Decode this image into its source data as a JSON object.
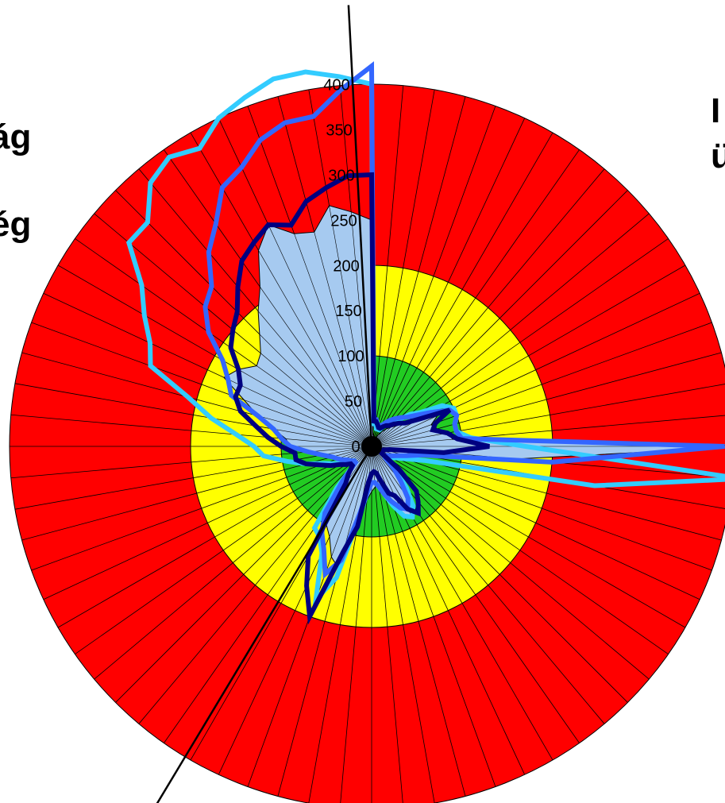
{
  "side_text": {
    "left_1": "ág",
    "left_2": "ég",
    "right_1": "I",
    "right_2": "ü"
  },
  "chart_data": {
    "type": "radar",
    "title": "",
    "r_range": [
      0,
      400
    ],
    "r_ticks": [
      "0",
      "50",
      "100",
      "150",
      "200",
      "250",
      "300",
      "350",
      "400"
    ],
    "r_tick_values": [
      0,
      50,
      100,
      150,
      200,
      250,
      300,
      350,
      400
    ],
    "num_sectors": 72,
    "zones": [
      {
        "name": "green",
        "from": 0,
        "to": 100,
        "color": "#22cc22"
      },
      {
        "name": "yellow",
        "from": 100,
        "to": 200,
        "color": "#ffff00"
      },
      {
        "name": "red",
        "from": 200,
        "to": 400,
        "color": "#ff0000"
      }
    ],
    "axis_angles_deg": [
      -3,
      211
    ],
    "series": [
      {
        "style": "area",
        "color": "#a6caf0",
        "values": [
          250,
          15,
          12,
          10,
          10,
          10,
          15,
          20,
          25,
          30,
          35,
          45,
          55,
          80,
          70,
          75,
          85,
          90,
          420,
          160,
          60,
          35,
          25,
          20,
          18,
          15,
          20,
          40,
          60,
          85,
          90,
          85,
          70,
          55,
          45,
          45,
          50,
          60,
          80,
          140,
          130,
          110,
          100,
          70,
          35,
          28,
          25,
          28,
          30,
          35,
          40,
          45,
          55,
          70,
          90,
          95,
          110,
          130,
          150,
          180,
          170,
          155,
          160,
          175,
          195,
          215,
          250,
          270,
          250,
          245,
          270,
          260
        ]
      },
      {
        "style": "line",
        "color": "#33ccff",
        "values": [
          400,
          25,
          25,
          20,
          20,
          20,
          25,
          30,
          35,
          40,
          55,
          65,
          90,
          100,
          100,
          95,
          95,
          110,
          170,
          410,
          250,
          60,
          40,
          30,
          25,
          20,
          20,
          40,
          60,
          80,
          90,
          85,
          70,
          55,
          45,
          40,
          40,
          50,
          80,
          150,
          180,
          130,
          115,
          110,
          60,
          25,
          25,
          28,
          35,
          45,
          55,
          75,
          95,
          120,
          130,
          150,
          180,
          210,
          260,
          270,
          290,
          310,
          350,
          350,
          380,
          390,
          380,
          400,
          410,
          420,
          420,
          410
        ]
      },
      {
        "style": "line",
        "color": "#3366ff",
        "values": [
          420,
          30,
          30,
          25,
          25,
          25,
          30,
          35,
          40,
          45,
          50,
          60,
          75,
          95,
          100,
          95,
          95,
          100,
          390,
          200,
          55,
          40,
          30,
          25,
          20,
          20,
          20,
          35,
          50,
          70,
          80,
          75,
          65,
          55,
          45,
          40,
          40,
          50,
          75,
          130,
          150,
          125,
          110,
          90,
          50,
          25,
          25,
          28,
          30,
          35,
          40,
          45,
          55,
          70,
          90,
          100,
          110,
          130,
          165,
          175,
          190,
          220,
          240,
          250,
          280,
          300,
          330,
          340,
          360,
          370,
          370,
          395
        ]
      },
      {
        "style": "line",
        "color": "#000080",
        "values": [
          300,
          28,
          28,
          25,
          22,
          22,
          25,
          28,
          30,
          35,
          40,
          45,
          60,
          95,
          75,
          70,
          85,
          95,
          130,
          80,
          20,
          15,
          12,
          10,
          10,
          15,
          40,
          70,
          80,
          90,
          80,
          60,
          55,
          40,
          30,
          28,
          30,
          40,
          90,
          120,
          200,
          170,
          140,
          50,
          40,
          30,
          30,
          35,
          40,
          50,
          60,
          75,
          85,
          85,
          100,
          115,
          130,
          150,
          160,
          160,
          170,
          190,
          200,
          210,
          230,
          250,
          260,
          270,
          260,
          280,
          290,
          300
        ]
      }
    ]
  }
}
